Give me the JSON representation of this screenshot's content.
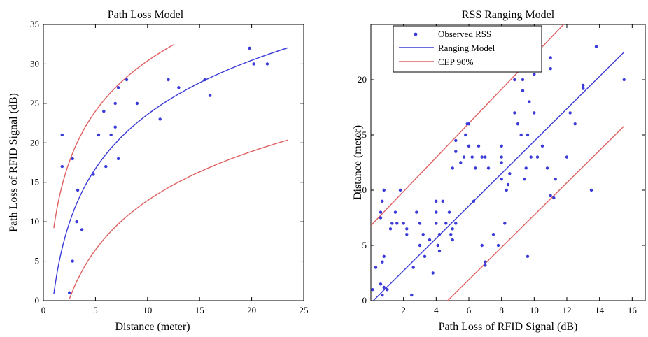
{
  "chart_data": [
    {
      "type": "scatter",
      "title": "Path Loss Model",
      "xlabel": "Distance (meter)",
      "ylabel": "Path Loss of RFID Signal (dB)",
      "xlim": [
        0,
        25
      ],
      "ylim": [
        0,
        35
      ],
      "xticks": [
        "0",
        "5",
        "10",
        "15",
        "20",
        "25"
      ],
      "yticks": [
        "0",
        "5",
        "10",
        "15",
        "20",
        "25",
        "30",
        "35"
      ],
      "grid": false,
      "colors": {
        "points": "#3a3ad8",
        "model": "#3a3ad8",
        "bounds": "#e06060"
      },
      "points": [
        [
          1.8,
          21
        ],
        [
          1.8,
          17
        ],
        [
          2.5,
          1
        ],
        [
          2.8,
          5
        ],
        [
          2.8,
          18
        ],
        [
          3.2,
          10
        ],
        [
          3.3,
          14
        ],
        [
          3.7,
          9
        ],
        [
          4.8,
          16
        ],
        [
          5.3,
          21
        ],
        [
          5.8,
          24
        ],
        [
          6.0,
          17
        ],
        [
          6.5,
          21
        ],
        [
          6.9,
          22
        ],
        [
          6.9,
          25
        ],
        [
          7.2,
          27
        ],
        [
          7.2,
          18
        ],
        [
          8.0,
          28
        ],
        [
          9.0,
          25
        ],
        [
          11.2,
          23
        ],
        [
          12.0,
          28
        ],
        [
          13.0,
          27
        ],
        [
          15.5,
          28
        ],
        [
          16.0,
          26
        ],
        [
          19.8,
          32
        ],
        [
          20.2,
          30
        ],
        [
          21.5,
          30
        ]
      ],
      "series": [
        {
          "role": "model",
          "x": [
            1.0,
            1.3,
            1.6,
            2.0,
            2.5,
            3,
            4,
            5,
            6,
            7,
            8,
            9,
            10,
            12,
            14,
            16,
            18,
            20,
            22,
            23.5
          ]
        },
        {
          "role": "upper",
          "x": [
            1.0,
            1.3,
            1.6,
            2.0,
            2.5,
            3,
            4,
            5,
            6,
            7,
            8,
            9,
            10,
            11,
            12,
            12.5
          ]
        },
        {
          "role": "lower",
          "x": [
            2.5,
            3,
            4,
            5,
            6,
            7,
            8,
            9,
            10,
            12,
            14,
            16,
            18,
            20,
            22,
            23.5
          ]
        }
      ]
    },
    {
      "type": "scatter",
      "title": "RSS Ranging Model",
      "xlabel": "Path Loss of RFID Signal (dB)",
      "ylabel": "Distance (meter)",
      "xlim": [
        0,
        16.8
      ],
      "ylim": [
        0,
        25
      ],
      "xticks": [
        "2",
        "4",
        "6",
        "8",
        "10",
        "12",
        "14",
        "16"
      ],
      "yticks": [
        "0",
        "5",
        "10",
        "15",
        "20"
      ],
      "grid": false,
      "legend": {
        "position": "top-left",
        "entries": [
          "Observed RSS",
          "Ranging Model",
          "CEP 90%"
        ]
      },
      "colors": {
        "points": "#3a3ad8",
        "model": "#3a3ad8",
        "bounds": "#e06060"
      },
      "points": [
        [
          0.1,
          1.0
        ],
        [
          0.3,
          3.0
        ],
        [
          0.6,
          1.5
        ],
        [
          0.7,
          0.5
        ],
        [
          0.8,
          1.2
        ],
        [
          0.6,
          7.5
        ],
        [
          0.6,
          8.0
        ],
        [
          0.7,
          9.0
        ],
        [
          0.8,
          10.0
        ],
        [
          0.7,
          3.5
        ],
        [
          0.8,
          4.0
        ],
        [
          1.0,
          1.0
        ],
        [
          1.2,
          6.5
        ],
        [
          1.3,
          7.0
        ],
        [
          1.5,
          8.0
        ],
        [
          1.6,
          7.0
        ],
        [
          1.8,
          10.0
        ],
        [
          2.0,
          7.0
        ],
        [
          2.2,
          6.5
        ],
        [
          2.2,
          6.0
        ],
        [
          2.5,
          0.5
        ],
        [
          2.6,
          3.0
        ],
        [
          2.8,
          8.0
        ],
        [
          3.0,
          5.0
        ],
        [
          3.0,
          7.0
        ],
        [
          3.2,
          6.0
        ],
        [
          3.3,
          4.0
        ],
        [
          3.6,
          5.5
        ],
        [
          3.8,
          2.5
        ],
        [
          4.0,
          7.0
        ],
        [
          4.0,
          8.0
        ],
        [
          4.0,
          9.0
        ],
        [
          4.1,
          5.0
        ],
        [
          4.2,
          4.5
        ],
        [
          4.2,
          6.0
        ],
        [
          4.4,
          9.0
        ],
        [
          4.6,
          7.0
        ],
        [
          4.8,
          8.0
        ],
        [
          4.9,
          6.0
        ],
        [
          5.0,
          5.5
        ],
        [
          5.0,
          6.5
        ],
        [
          5.2,
          7.0
        ],
        [
          5.0,
          12.0
        ],
        [
          5.2,
          13.5
        ],
        [
          5.2,
          14.5
        ],
        [
          5.5,
          12.5
        ],
        [
          5.7,
          13.0
        ],
        [
          5.8,
          15.0
        ],
        [
          5.9,
          16.0
        ],
        [
          6.0,
          16.0
        ],
        [
          6.0,
          14.0
        ],
        [
          6.2,
          13.0
        ],
        [
          6.3,
          9.0
        ],
        [
          6.4,
          12.0
        ],
        [
          6.6,
          14.0
        ],
        [
          6.8,
          13.0
        ],
        [
          6.8,
          5.0
        ],
        [
          7.0,
          13.0
        ],
        [
          7.2,
          12.0
        ],
        [
          7.0,
          3.5
        ],
        [
          7.0,
          3.2
        ],
        [
          7.5,
          6.0
        ],
        [
          7.8,
          5.0
        ],
        [
          8.0,
          14.0
        ],
        [
          8.0,
          13.0
        ],
        [
          8.0,
          12.5
        ],
        [
          8.0,
          11.0
        ],
        [
          8.2,
          7.0
        ],
        [
          8.3,
          10.0
        ],
        [
          8.4,
          10.5
        ],
        [
          8.5,
          11.5
        ],
        [
          8.8,
          17.0
        ],
        [
          8.8,
          20.0
        ],
        [
          8.8,
          21.0
        ],
        [
          9.0,
          16.0
        ],
        [
          9.2,
          15.0
        ],
        [
          9.3,
          19.0
        ],
        [
          9.3,
          20.0
        ],
        [
          9.4,
          11.0
        ],
        [
          9.5,
          12.0
        ],
        [
          9.6,
          15.0
        ],
        [
          9.7,
          18.0
        ],
        [
          9.8,
          13.0
        ],
        [
          9.6,
          4.0
        ],
        [
          10.0,
          20.5
        ],
        [
          10.0,
          17.0
        ],
        [
          10.2,
          13.0
        ],
        [
          10.5,
          14.0
        ],
        [
          10.8,
          12.0
        ],
        [
          11.0,
          21.0
        ],
        [
          11.0,
          22.0
        ],
        [
          11.0,
          9.5
        ],
        [
          11.2,
          9.3
        ],
        [
          11.3,
          11.0
        ],
        [
          12.0,
          13.0
        ],
        [
          12.2,
          17.0
        ],
        [
          12.5,
          16.0
        ],
        [
          13.0,
          19.5
        ],
        [
          13.0,
          19.2
        ],
        [
          13.5,
          10.0
        ],
        [
          13.8,
          23.0
        ],
        [
          15.5,
          20.0
        ]
      ],
      "series": [
        {
          "role": "model",
          "x": [
            0.15,
            15.5
          ],
          "y": [
            0.0,
            22.5
          ]
        },
        {
          "role": "upper",
          "x": [
            0.0,
            11.8
          ],
          "y": [
            6.8,
            25.0
          ]
        },
        {
          "role": "lower",
          "x": [
            4.7,
            15.5
          ],
          "y": [
            0.0,
            15.8
          ]
        }
      ]
    }
  ]
}
